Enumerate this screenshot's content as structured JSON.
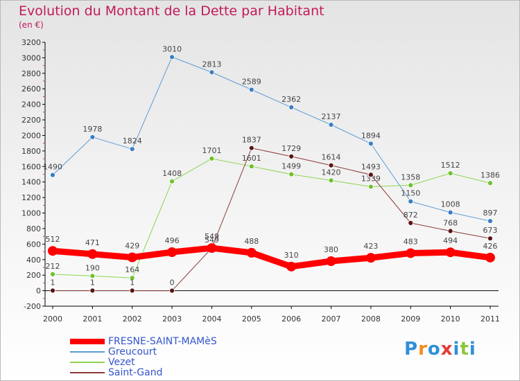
{
  "title": "Evolution du Montant de la Dette par Habitant",
  "subtitle": "(en €)",
  "logo": "Proxiti",
  "chart_data": {
    "type": "line",
    "title": "Evolution du Montant de la Dette par Habitant",
    "subtitle": "(en €)",
    "xlabel": "",
    "ylabel": "",
    "x": [
      "2000",
      "2001",
      "2002",
      "2003",
      "2004",
      "2005",
      "2006",
      "2007",
      "2008",
      "2009",
      "2010",
      "2011"
    ],
    "yticks": [
      -200,
      0,
      200,
      400,
      600,
      800,
      1000,
      1200,
      1400,
      1600,
      1800,
      2000,
      2200,
      2400,
      2600,
      2800,
      3000,
      3200
    ],
    "ylim": [
      -200,
      3200
    ],
    "grid": false,
    "legend_position": "bottom-left",
    "series": [
      {
        "name": "Greucourt",
        "color": "#5b9bd5",
        "dot": "#3a7ec6",
        "width": 1,
        "values": [
          1490,
          1978,
          1824,
          3010,
          2813,
          2589,
          2362,
          2137,
          1894,
          1150,
          1008,
          897
        ]
      },
      {
        "name": "Vezet",
        "color": "#8ed452",
        "dot": "#6fc12f",
        "width": 1,
        "values": [
          212,
          190,
          164,
          1408,
          1701,
          1601,
          1499,
          1420,
          1339,
          1358,
          1512,
          1386
        ]
      },
      {
        "name": "Saint-Gand",
        "color": "#8b3a3a",
        "dot": "#5a1414",
        "width": 1,
        "values": [
          1,
          1,
          1,
          0,
          549,
          1837,
          1729,
          1614,
          1493,
          872,
          768,
          673
        ]
      },
      {
        "name": "FRESNE-SAINT-MAMèS",
        "color": "#ff0000",
        "dot": "#ff0000",
        "width": 9,
        "values": [
          512,
          471,
          429,
          496,
          549,
          488,
          310,
          380,
          423,
          483,
          494,
          426
        ]
      }
    ],
    "legend_order": [
      "FRESNE-SAINT-MAMèS",
      "Greucourt",
      "Vezet",
      "Saint-Gand"
    ]
  }
}
